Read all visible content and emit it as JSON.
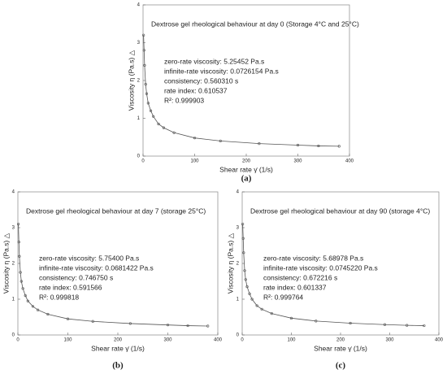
{
  "chart_data": [
    {
      "type": "line",
      "title": "Dextrose gel rheological behaviour at day 0 (Storage 4°C and 25°C)",
      "x_label": "Shear rate γ̇  (1/s)",
      "y_label": "Viscosity  η  (Pa.s) △",
      "caption": "(a)",
      "annotations": [
        "zero-rate viscosity: 5.25452 Pa.s",
        "infinite-rate viscosity: 0.0726154 Pa.s",
        "consistency: 0.560310 s",
        "rate index: 0.610537",
        "R²: 0.999903"
      ],
      "series": [
        {
          "name": "day 0",
          "color": "#555555",
          "x": [
            1,
            2,
            3,
            5,
            7,
            10,
            15,
            20,
            30,
            40,
            60,
            100,
            150,
            225,
            300,
            340,
            380
          ],
          "values": [
            3.2,
            2.8,
            2.4,
            1.9,
            1.65,
            1.4,
            1.2,
            1.05,
            0.85,
            0.75,
            0.62,
            0.48,
            0.4,
            0.33,
            0.29,
            0.27,
            0.26
          ]
        }
      ],
      "xlim": [
        0,
        400
      ],
      "ylim": [
        0,
        4
      ],
      "xticks": [
        0,
        100,
        200,
        300,
        400
      ],
      "yticks": [
        0,
        1,
        2,
        3,
        4
      ]
    },
    {
      "type": "line",
      "title": "Dextrose gel rheological behaviour at day 7 (storage 25°C)",
      "x_label": "Shear rate γ̇  (1/s)",
      "y_label": "Viscosity  η  (Pa.s) △",
      "caption": "(b)",
      "annotations": [
        "zero-rate viscosity: 5.75400 Pa.s",
        "infinite-rate viscosity: 0.0681422 Pa.s",
        "consistency: 0.746750 s",
        "rate index: 0.591566",
        "R²: 0.999818"
      ],
      "series": [
        {
          "name": "day 7",
          "color": "#555555",
          "x": [
            1,
            2,
            3,
            5,
            7,
            10,
            15,
            20,
            30,
            40,
            60,
            100,
            150,
            225,
            300,
            340,
            380
          ],
          "values": [
            3.1,
            2.6,
            2.2,
            1.75,
            1.5,
            1.3,
            1.1,
            0.95,
            0.8,
            0.7,
            0.58,
            0.45,
            0.38,
            0.32,
            0.28,
            0.26,
            0.25
          ]
        }
      ],
      "xlim": [
        0,
        400
      ],
      "ylim": [
        0,
        4
      ],
      "xticks": [
        0,
        100,
        200,
        300,
        400
      ],
      "yticks": [
        0,
        1,
        2,
        3,
        4
      ]
    },
    {
      "type": "line",
      "title": "Dextrose gel rheological behaviour at day 90 (storage 4°C)",
      "x_label": "Shear rate γ̇  (1/s)",
      "y_label": "Viscosity  η  (Pa.s) △",
      "caption": "(c)",
      "annotations": [
        "zero-rate viscosity: 5.68978 Pa.s",
        "infinite-rate viscosity: 0.0745220 Pa.s",
        "consistency: 0.672216 s",
        "rate index: 0.601337",
        "R²: 0.999764"
      ],
      "series": [
        {
          "name": "day 90",
          "color": "#555555",
          "x": [
            1,
            2,
            3,
            5,
            7,
            10,
            15,
            20,
            30,
            40,
            60,
            100,
            150,
            220,
            290,
            335,
            370
          ],
          "values": [
            3.1,
            2.7,
            2.3,
            1.8,
            1.55,
            1.35,
            1.15,
            1.0,
            0.82,
            0.72,
            0.6,
            0.47,
            0.39,
            0.33,
            0.29,
            0.27,
            0.26
          ]
        }
      ],
      "xlim": [
        0,
        400
      ],
      "ylim": [
        0,
        4
      ],
      "xticks": [
        0,
        100,
        200,
        300,
        400
      ],
      "yticks": [
        0,
        1,
        2,
        3,
        4
      ]
    }
  ]
}
